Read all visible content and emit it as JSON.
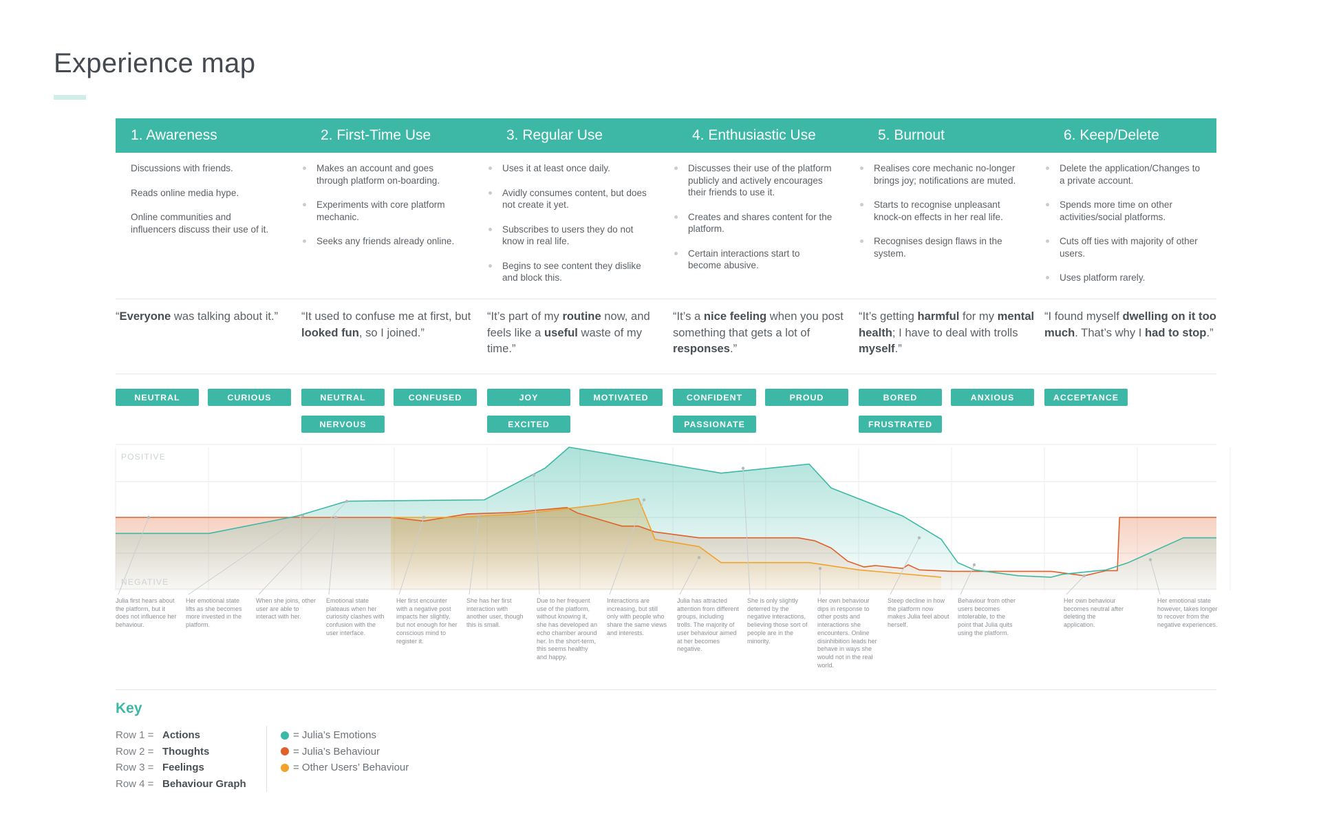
{
  "title": "Experience map",
  "stages": [
    {
      "label": "1. Awareness"
    },
    {
      "label": "2. First-Time Use"
    },
    {
      "label": "3. Regular Use"
    },
    {
      "label": "4. Enthusiastic Use"
    },
    {
      "label": "5. Burnout"
    },
    {
      "label": "6. Keep/Delete"
    }
  ],
  "actions": [
    [
      "Discussions with friends.",
      "Reads online media hype.",
      "Online communities and influencers discuss their use of it."
    ],
    [
      "Makes an account and goes through platform on-boarding.",
      "Experiments with core platform mechanic.",
      "Seeks any friends already online."
    ],
    [
      "Uses it at least once daily.",
      "Avidly consumes content, but does not create it yet.",
      "Subscribes to users they do not know in real life.",
      "Begins to see content they dislike and block this."
    ],
    [
      "Discusses their use of the platform publicly and actively encourages their friends to use it.",
      "Creates and shares content for the platform.",
      "Certain interactions start to become abusive."
    ],
    [
      "Realises core mechanic no-longer brings joy; notifications are muted.",
      "Starts to recognise unpleasant knock-on effects in her real life.",
      "Recognises design flaws in the system."
    ],
    [
      "Delete the application/Changes to a private account.",
      "Spends more time on other activities/social platforms.",
      "Cuts off ties with majority of other users.",
      "Uses platform rarely."
    ]
  ],
  "thoughts": [
    [
      {
        "t": "“"
      },
      {
        "t": "Everyone",
        "b": true
      },
      {
        "t": " was talking about it.”"
      }
    ],
    [
      {
        "t": "“It used to confuse me at first, but "
      },
      {
        "t": "looked fun",
        "b": true
      },
      {
        "t": ", so I joined.”"
      }
    ],
    [
      {
        "t": "“It’s part of my "
      },
      {
        "t": "routine",
        "b": true
      },
      {
        "t": " now, and feels like a "
      },
      {
        "t": "useful",
        "b": true
      },
      {
        "t": " waste of my time.”"
      }
    ],
    [
      {
        "t": "“It’s a "
      },
      {
        "t": "nice feeling",
        "b": true
      },
      {
        "t": " when you post something that gets a lot of "
      },
      {
        "t": "responses",
        "b": true
      },
      {
        "t": ".”"
      }
    ],
    [
      {
        "t": "“It’s getting "
      },
      {
        "t": "harmful",
        "b": true
      },
      {
        "t": " for my "
      },
      {
        "t": "mental health",
        "b": true
      },
      {
        "t": "; I have to deal with trolls "
      },
      {
        "t": "myself",
        "b": true
      },
      {
        "t": ".”"
      }
    ],
    [
      {
        "t": "“I found myself "
      },
      {
        "t": "dwelling on it too much",
        "b": true
      },
      {
        "t": ". That’s why I "
      },
      {
        "t": "had to stop",
        "b": true
      },
      {
        "t": ".”"
      }
    ]
  ],
  "feelings": [
    {
      "label": "NEUTRAL",
      "stage": 0,
      "slot": 0,
      "row": 0
    },
    {
      "label": "CURIOUS",
      "stage": 0,
      "slot": 1,
      "row": 0
    },
    {
      "label": "NEUTRAL",
      "stage": 1,
      "slot": 0,
      "row": 0
    },
    {
      "label": "CONFUSED",
      "stage": 1,
      "slot": 1,
      "row": 0
    },
    {
      "label": "NERVOUS",
      "stage": 1,
      "slot": 0,
      "row": 1
    },
    {
      "label": "JOY",
      "stage": 2,
      "slot": 0,
      "row": 0
    },
    {
      "label": "MOTIVATED",
      "stage": 2,
      "slot": 1,
      "row": 0
    },
    {
      "label": "EXCITED",
      "stage": 2,
      "slot": 0,
      "row": 1
    },
    {
      "label": "CONFIDENT",
      "stage": 3,
      "slot": 0,
      "row": 0
    },
    {
      "label": "PROUD",
      "stage": 3,
      "slot": 1,
      "row": 0
    },
    {
      "label": "PASSIONATE",
      "stage": 3,
      "slot": 0,
      "row": 1
    },
    {
      "label": "BORED",
      "stage": 4,
      "slot": 0,
      "row": 0
    },
    {
      "label": "ANXIOUS",
      "stage": 4,
      "slot": 1,
      "row": 0
    },
    {
      "label": "FRUSTRATED",
      "stage": 4,
      "slot": 0,
      "row": 1
    },
    {
      "label": "ACCEPTANCE",
      "stage": 5,
      "slot": 0,
      "row": 0
    }
  ],
  "graph": {
    "positive_label": "POSITIVE",
    "negative_label": "NEGATIVE",
    "colors": {
      "emotions": "#3db8a6",
      "behaviour": "#e0602a",
      "others": "#f0a32a"
    }
  },
  "chart_data": {
    "type": "line",
    "y_scale": "emotional valence, 0 = neutral, +1 = most positive, -1 = most negative",
    "ylim": [
      -1,
      1
    ],
    "series": [
      {
        "name": "Julia’s Emotions",
        "points": [
          [
            0,
            -0.22
          ],
          [
            0.085,
            -0.22
          ],
          [
            0.165,
            0.02
          ],
          [
            0.21,
            0.23
          ],
          [
            0.335,
            0.25
          ],
          [
            0.39,
            0.7
          ],
          [
            0.412,
            1.0
          ],
          [
            0.55,
            0.63
          ],
          [
            0.63,
            0.76
          ],
          [
            0.65,
            0.42
          ],
          [
            0.715,
            0.02
          ],
          [
            0.75,
            -0.3
          ],
          [
            0.765,
            -0.62
          ],
          [
            0.78,
            -0.72
          ],
          [
            0.82,
            -0.8
          ],
          [
            0.85,
            -0.82
          ],
          [
            0.86,
            -0.78
          ],
          [
            0.9,
            -0.72
          ],
          [
            0.92,
            -0.62
          ],
          [
            0.97,
            -0.28
          ],
          [
            1.0,
            -0.28
          ]
        ]
      },
      {
        "name": "Julia’s Behaviour",
        "points": [
          [
            0,
            0
          ],
          [
            0.25,
            0
          ],
          [
            0.28,
            -0.05
          ],
          [
            0.32,
            0.05
          ],
          [
            0.36,
            0.07
          ],
          [
            0.41,
            0.14
          ],
          [
            0.42,
            0.06
          ],
          [
            0.46,
            -0.12
          ],
          [
            0.475,
            -0.12
          ],
          [
            0.49,
            -0.2
          ],
          [
            0.53,
            -0.28
          ],
          [
            0.56,
            -0.28
          ],
          [
            0.62,
            -0.28
          ],
          [
            0.635,
            -0.32
          ],
          [
            0.65,
            -0.42
          ],
          [
            0.665,
            -0.6
          ],
          [
            0.68,
            -0.68
          ],
          [
            0.69,
            -0.66
          ],
          [
            0.715,
            -0.7
          ],
          [
            0.72,
            -0.65
          ],
          [
            0.73,
            -0.72
          ],
          [
            0.76,
            -0.74
          ],
          [
            0.85,
            -0.74
          ],
          [
            0.88,
            -0.8
          ],
          [
            0.9,
            -0.73
          ],
          [
            0.91,
            -0.73
          ],
          [
            0.912,
            0
          ],
          [
            1.0,
            0
          ]
        ]
      },
      {
        "name": "Other Users’ Behaviour",
        "points": [
          [
            0.25,
            0
          ],
          [
            0.31,
            0
          ],
          [
            0.37,
            0.05
          ],
          [
            0.44,
            0.18
          ],
          [
            0.475,
            0.27
          ],
          [
            0.49,
            -0.3
          ],
          [
            0.53,
            -0.4
          ],
          [
            0.55,
            -0.62
          ],
          [
            0.63,
            -0.62
          ],
          [
            0.675,
            -0.72
          ],
          [
            0.75,
            -0.82
          ]
        ]
      }
    ]
  },
  "annotations": [
    "Julia first hears about the platform, but it does not influence her behaviour.",
    "Her emotional state lifts as she becomes more invested in the platform.",
    "When she joins, other user are able to interact with her.",
    "Emotional state plateaus when her curiosity clashes with confusion with the user interface.",
    "Her first encounter with a negative post impacts her slightly, but not enough for her conscious mind to register it.",
    "She has her first interaction with another user, though this is small.",
    "Due to her frequent use of the platform, without knowing it, she has developed an echo chamber around her. In the short-term, this seems healthy and happy.",
    "Interactions are increasing, but still only with people who share the same views and interests.",
    "Julia has attracted attention from different groups, including trolls. The majority of user behaviour aimed at her becomes negative.",
    "She is only slightly deterred by the negative interactions, believing those sort of people are in the minority.",
    "Her own behaviour dips in response to other posts and interactions she encounters. Online disinhibition leads her behave in ways she would not in the real world.",
    "Steep decline in how the platform now makes Julia feel about herself.",
    "Behaviour from other users becomes intolerable, to the point that Julia quits using the platform.",
    "Her own behaviour becomes neutral after deleting the application.",
    "Her emotional state however, takes longer to recover from the negative experiences."
  ],
  "key": {
    "title": "Key",
    "rows": [
      {
        "label": "Row 1 =",
        "value": "Actions"
      },
      {
        "label": "Row 2 =",
        "value": "Thoughts"
      },
      {
        "label": "Row 3 =",
        "value": "Feelings"
      },
      {
        "label": "Row 4 =",
        "value": "Behaviour Graph"
      }
    ],
    "legend": [
      {
        "color": "#3db8a6",
        "label": "= Julia’s Emotions"
      },
      {
        "color": "#e0602a",
        "label": "= Julia’s Behaviour"
      },
      {
        "color": "#f0a32a",
        "label": "= Other Users’ Behaviour"
      }
    ]
  }
}
